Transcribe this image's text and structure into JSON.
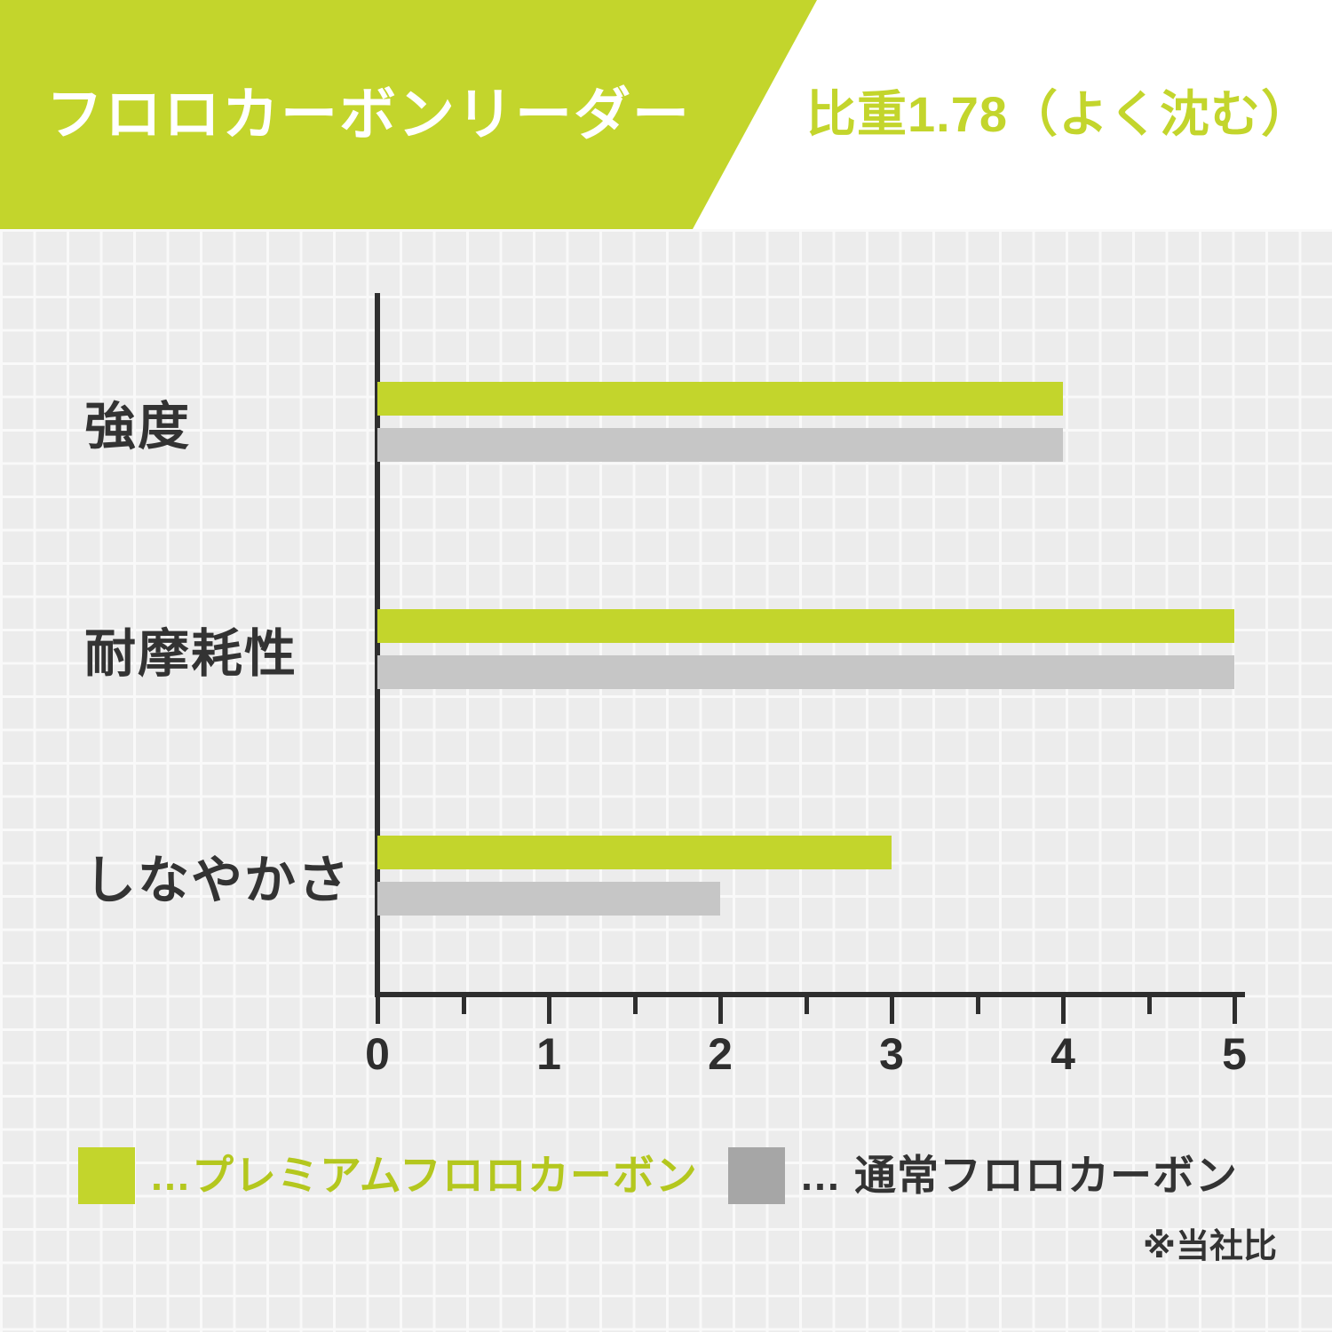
{
  "header": {
    "title": "フロロカーボンリーダー",
    "badge": "比重1.78（よく沈む）"
  },
  "chart_data": {
    "type": "bar",
    "orientation": "horizontal",
    "title": "フロロカーボンリーダー",
    "categories": [
      "強度",
      "耐摩耗性",
      "しなやかさ"
    ],
    "series": [
      {
        "name": "プレミアムフロロカーボン",
        "color": "#c3d52c",
        "values": [
          4,
          5,
          3
        ]
      },
      {
        "name": "通常フロロカーボン",
        "color": "#c6c6c6",
        "values": [
          4,
          5,
          2
        ]
      }
    ],
    "xlim": [
      0,
      5
    ],
    "x_ticks": [
      0,
      1,
      2,
      3,
      4,
      5
    ],
    "minor_tick_step": 0.5,
    "grid": true,
    "legend_position": "bottom",
    "note": "※当社比"
  },
  "legend": {
    "items": [
      {
        "label": "…プレミアムフロロカーボン",
        "swatch_color": "#c3d52c"
      },
      {
        "label": "… 通常フロロカーボン",
        "swatch_color": "#a6a6a6"
      }
    ]
  },
  "footnote": "※当社比",
  "colors": {
    "accent_lime": "#c3d52c",
    "bar_gray": "#c6c6c6",
    "background_gray": "#ececec",
    "axis": "#2e2e2e"
  }
}
